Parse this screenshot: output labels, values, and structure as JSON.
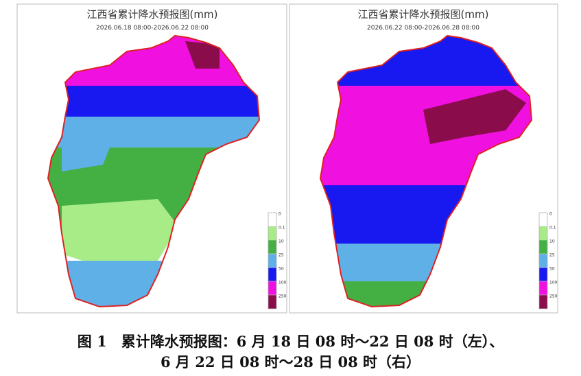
{
  "maps": [
    {
      "title": "江西省累计降水预报图(mm)",
      "period": "2026.06.18 08:00-2026.06.22 08:00",
      "legend": [
        0,
        0.1,
        10,
        25,
        50,
        100,
        250
      ]
    },
    {
      "title": "江西省累计降水预报图(mm)",
      "period": "2026.06.22 08:00-2026.06.28 08:00",
      "legend": [
        0,
        0.1,
        10,
        25,
        50,
        100,
        250
      ]
    }
  ],
  "caption": {
    "line1": "图 1　累计降水预报图：6 月 18 日 08 时～22 日 08 时（左）、",
    "line2": "6 月 22 日 08 时～28 日 08 时（右）"
  }
}
